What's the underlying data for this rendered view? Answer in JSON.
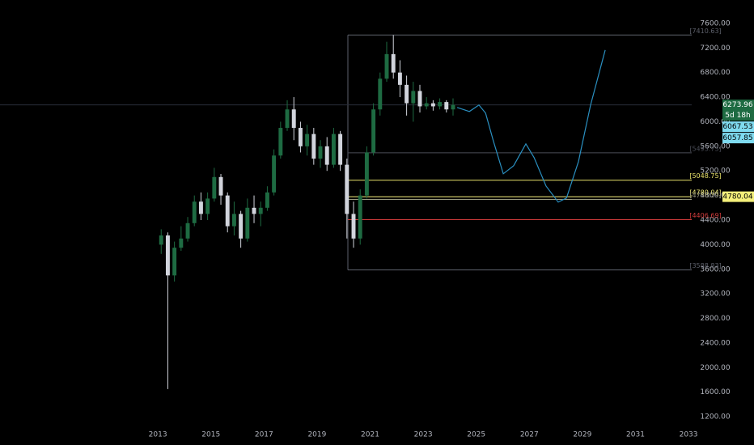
{
  "chart_data": {
    "type": "candlestick",
    "x": [
      2013.0,
      2013.25,
      2013.5,
      2013.75,
      2014.0,
      2014.25,
      2014.5,
      2014.75,
      2015.0,
      2015.25,
      2015.5,
      2015.75,
      2016.0,
      2016.25,
      2016.5,
      2016.75,
      2017.0,
      2017.25,
      2017.5,
      2017.75,
      2018.0,
      2018.25,
      2018.5,
      2018.75,
      2019.0,
      2019.25,
      2019.5,
      2019.75,
      2020.0,
      2020.25,
      2020.5,
      2020.75,
      2021.0,
      2021.25,
      2021.5,
      2021.75,
      2022.0,
      2022.25,
      2022.5,
      2022.75,
      2023.0,
      2023.25,
      2023.5,
      2023.75,
      2024.0
    ],
    "open": [
      4000,
      4150,
      3500,
      3950,
      4100,
      4350,
      4700,
      4500,
      4750,
      5100,
      4800,
      4300,
      4500,
      4100,
      4600,
      4500,
      4600,
      4850,
      5450,
      5900,
      6200,
      5900,
      5600,
      5800,
      5400,
      5600,
      5300,
      5800,
      5300,
      4500,
      4100,
      4800,
      5500,
      6200,
      6700,
      7100,
      6800,
      6600,
      6300,
      6500,
      6250,
      6300,
      6250,
      6320,
      6200
    ],
    "high": [
      4250,
      4200,
      4050,
      4300,
      4450,
      4800,
      4850,
      4850,
      5250,
      5150,
      4850,
      4700,
      4550,
      4750,
      4800,
      4700,
      4950,
      5550,
      6000,
      6350,
      6400,
      6000,
      5950,
      5900,
      5700,
      5750,
      5900,
      5850,
      5400,
      4700,
      4900,
      5600,
      6300,
      6800,
      7300,
      7410,
      7000,
      6750,
      6650,
      6600,
      6400,
      6350,
      6380,
      6350,
      6380
    ],
    "low": [
      3850,
      1650,
      3400,
      3900,
      4050,
      4300,
      4400,
      4400,
      4700,
      4650,
      4200,
      4150,
      3950,
      4050,
      4350,
      4300,
      4550,
      4800,
      5400,
      5850,
      5700,
      5500,
      5450,
      5300,
      5250,
      5200,
      5250,
      5200,
      4100,
      3950,
      4000,
      4750,
      5450,
      6100,
      6650,
      6700,
      6400,
      6100,
      6000,
      6150,
      6200,
      6180,
      6200,
      6150,
      6100
    ],
    "close": [
      4150,
      3500,
      3950,
      4100,
      4350,
      4700,
      4500,
      4750,
      5100,
      4800,
      4300,
      4500,
      4100,
      4600,
      4500,
      4600,
      4850,
      5450,
      5900,
      6200,
      5900,
      5600,
      5800,
      5400,
      5600,
      5300,
      5800,
      5300,
      4500,
      4100,
      4800,
      5500,
      6200,
      6700,
      7100,
      6800,
      6600,
      6300,
      6500,
      6250,
      6300,
      6250,
      6320,
      6200,
      6273.96
    ],
    "up_color": "#1e6b42",
    "down_color": "#d1d4dc",
    "xlim": [
      2007.05,
      2033.12
    ],
    "xticks": [
      2013,
      2015,
      2017,
      2019,
      2021,
      2023,
      2025,
      2027,
      2029,
      2031,
      2033
    ],
    "ylim": [
      1070,
      7980
    ],
    "yticks": [
      {
        "value": 1200,
        "label": "1200.00"
      },
      {
        "value": 1600,
        "label": "1600.00"
      },
      {
        "value": 2000,
        "label": "2000.00"
      },
      {
        "value": 2400,
        "label": "2400.00"
      },
      {
        "value": 2800,
        "label": "2800.00"
      },
      {
        "value": 3200,
        "label": "3200.00"
      },
      {
        "value": 3600,
        "label": "3600.00"
      },
      {
        "value": 4000,
        "label": "4000.00"
      },
      {
        "value": 4400,
        "label": "4400.00"
      },
      {
        "value": 4800,
        "label": "4800.00"
      },
      {
        "value": 5200,
        "label": "5200.00"
      },
      {
        "value": 5600,
        "label": "5600.00"
      },
      {
        "value": 6000,
        "label": "6000.00"
      },
      {
        "value": 6400,
        "label": "6400.00"
      },
      {
        "value": 6800,
        "label": "6800.00"
      },
      {
        "value": 7200,
        "label": "7200.00"
      },
      {
        "value": 7600,
        "label": "7600.00"
      }
    ],
    "levels": [
      {
        "value": 7410.63,
        "label": "[7410.63]",
        "color": "#5d606b"
      },
      {
        "value": 5493.73,
        "label": "[5493.73]",
        "color": "#4a4d57"
      },
      {
        "value": 5048.75,
        "label": "[5048.75]",
        "color": "#e8e26a"
      },
      {
        "value": 4780.04,
        "label": "[4780.04]",
        "color": "#f5f07a"
      },
      {
        "value": 4736.29,
        "label": "[4736.29]",
        "color": "#9a9a80"
      },
      {
        "value": 4406.69,
        "label": "[4406.69]",
        "color": "#d23c3c"
      },
      {
        "value": 3588.83,
        "label": "[3588.83]",
        "color": "#5d606b"
      }
    ],
    "price_tags": [
      {
        "value": 6273.96,
        "note": "5d 18h",
        "color": "#1e6b42",
        "text_color": "#ffffff"
      },
      {
        "value": 6067.53,
        "color": "#7fdbf0",
        "text_color": "#000000"
      },
      {
        "value": 6057.85,
        "color": "#7fdbf0",
        "text_color": "#000000"
      },
      {
        "value": 4780.04,
        "color": "#f5f07a",
        "text_color": "#000000"
      }
    ],
    "projection": {
      "color": "#2a8fc0",
      "x": [
        2024.28,
        2024.74,
        2025.1,
        2025.35,
        2025.65,
        2026.02,
        2026.41,
        2026.87,
        2027.18,
        2027.63,
        2028.09,
        2028.4,
        2028.85,
        2029.31,
        2029.86
      ],
      "y": [
        6232,
        6166,
        6271,
        6140,
        5679,
        5153,
        5284,
        5640,
        5416,
        4955,
        4692,
        4758,
        5350,
        6271,
        7166
      ]
    }
  }
}
